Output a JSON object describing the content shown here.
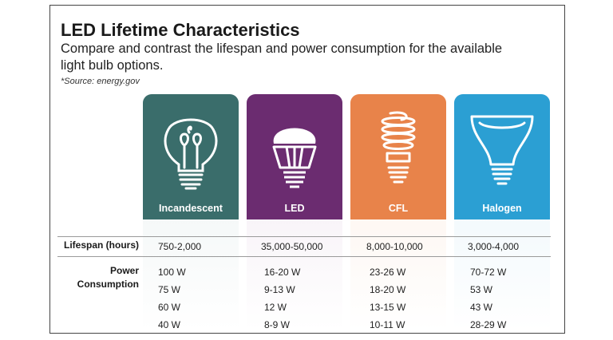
{
  "header": {
    "title": "LED Lifetime Characteristics",
    "subtitle": "Compare and contrast the lifespan and power consumption for the available light bulb options.",
    "source": "*Source: energy.gov"
  },
  "bulbs": [
    {
      "name": "Incandescent",
      "icon": "incandescent-bulb-icon",
      "color": "#3a6d6b",
      "tint": "#eaf1f1"
    },
    {
      "name": "LED",
      "icon": "led-bulb-icon",
      "color": "#6b2c70",
      "tint": "#f1e8f1"
    },
    {
      "name": "CFL",
      "icon": "cfl-bulb-icon",
      "color": "#e8834a",
      "tint": "#fcefe6"
    },
    {
      "name": "Halogen",
      "icon": "halogen-bulb-icon",
      "color": "#2b9fd3",
      "tint": "#e6f3fa"
    }
  ],
  "rows": {
    "lifespan_label": "Lifespan (hours)",
    "lifespan": [
      "750-2,000",
      "35,000-50,000",
      "8,000-10,000",
      "3,000-4,000"
    ],
    "power_label_line1": "Power",
    "power_label_line2": "Consumption",
    "power": [
      [
        "100 W",
        "75 W",
        "60 W",
        "40 W"
      ],
      [
        "16-20 W",
        "9-13 W",
        "12 W",
        "8-9 W"
      ],
      [
        "23-26 W",
        "18-20 W",
        "13-15 W",
        "10-11 W"
      ],
      [
        "70-72 W",
        "53 W",
        "43 W",
        "28-29 W"
      ]
    ]
  }
}
